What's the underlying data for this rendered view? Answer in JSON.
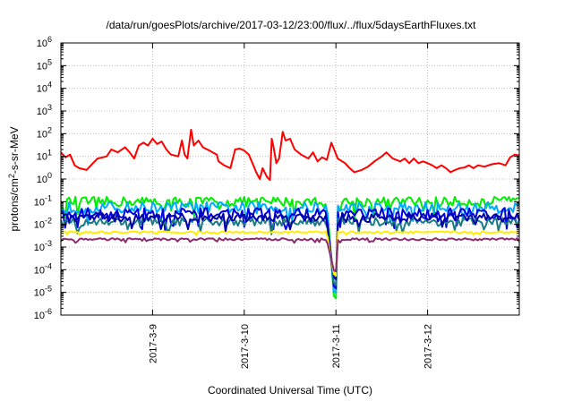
{
  "chart_data": {
    "type": "line",
    "title": "/data/run/goesPlots/archive/2017-03-12/23:00/flux/../flux/5daysEarthFluxes.txt",
    "xlabel": "Coordinated Universal Time (UTC)",
    "ylabel_parts": [
      "protons/cm",
      "2",
      "-s-sr-MeV"
    ],
    "y_scale": "log",
    "ylim": [
      1e-06,
      1000000.0
    ],
    "y_ticks": [
      {
        "base": "10",
        "exp": "-6",
        "value": 1e-06
      },
      {
        "base": "10",
        "exp": "-5",
        "value": 1e-05
      },
      {
        "base": "10",
        "exp": "-4",
        "value": 0.0001
      },
      {
        "base": "10",
        "exp": "-3",
        "value": 0.001
      },
      {
        "base": "10",
        "exp": "-2",
        "value": 0.01
      },
      {
        "base": "10",
        "exp": "-1",
        "value": 0.1
      },
      {
        "base": "10",
        "exp": "0",
        "value": 1
      },
      {
        "base": "10",
        "exp": "1",
        "value": 10
      },
      {
        "base": "10",
        "exp": "2",
        "value": 100
      },
      {
        "base": "10",
        "exp": "3",
        "value": 1000
      },
      {
        "base": "10",
        "exp": "4",
        "value": 10000
      },
      {
        "base": "10",
        "exp": "5",
        "value": 100000
      },
      {
        "base": "10",
        "exp": "6",
        "value": 1000000
      }
    ],
    "x_range_days": [
      8.0,
      13.0
    ],
    "x_ticks": [
      {
        "label": "2017-3-9",
        "day": 9
      },
      {
        "label": "2017-3-10",
        "day": 10
      },
      {
        "label": "2017-3-11",
        "day": 11
      },
      {
        "label": "2017-3-12",
        "day": 12
      }
    ],
    "grid": true,
    "dropout": {
      "start": 10.9,
      "end": 11.02,
      "min_day": 10.99
    },
    "series": [
      {
        "color": "#ff0000",
        "points": [
          [
            8.0,
            15
          ],
          [
            8.05,
            9
          ],
          [
            8.1,
            12
          ],
          [
            8.15,
            4
          ],
          [
            8.2,
            3
          ],
          [
            8.28,
            2.5
          ],
          [
            8.35,
            5
          ],
          [
            8.4,
            8
          ],
          [
            8.5,
            10
          ],
          [
            8.55,
            20
          ],
          [
            8.62,
            15
          ],
          [
            8.7,
            25
          ],
          [
            8.75,
            15
          ],
          [
            8.8,
            8
          ],
          [
            8.85,
            30
          ],
          [
            8.9,
            40
          ],
          [
            8.95,
            30
          ],
          [
            9.0,
            60
          ],
          [
            9.05,
            35
          ],
          [
            9.1,
            45
          ],
          [
            9.15,
            20
          ],
          [
            9.2,
            12
          ],
          [
            9.28,
            10
          ],
          [
            9.32,
            50
          ],
          [
            9.35,
            12
          ],
          [
            9.38,
            8
          ],
          [
            9.42,
            150
          ],
          [
            9.45,
            30
          ],
          [
            9.5,
            50
          ],
          [
            9.55,
            25
          ],
          [
            9.62,
            18
          ],
          [
            9.7,
            12
          ],
          [
            9.72,
            6
          ],
          [
            9.78,
            4
          ],
          [
            9.85,
            3
          ],
          [
            9.9,
            20
          ],
          [
            9.95,
            22
          ],
          [
            10.0,
            18
          ],
          [
            10.05,
            12
          ],
          [
            10.1,
            4
          ],
          [
            10.13,
            2
          ],
          [
            10.17,
            1
          ],
          [
            10.2,
            3
          ],
          [
            10.25,
            1.2
          ],
          [
            10.28,
            0.9
          ],
          [
            10.3,
            60
          ],
          [
            10.32,
            25
          ],
          [
            10.35,
            5
          ],
          [
            10.38,
            8
          ],
          [
            10.42,
            120
          ],
          [
            10.45,
            50
          ],
          [
            10.5,
            60
          ],
          [
            10.55,
            20
          ],
          [
            10.62,
            12
          ],
          [
            10.7,
            8
          ],
          [
            10.75,
            15
          ],
          [
            10.8,
            6
          ],
          [
            10.85,
            9
          ],
          [
            10.9,
            7
          ],
          [
            10.95,
            40
          ],
          [
            10.98,
            20
          ],
          [
            11.02,
            8
          ],
          [
            11.1,
            5
          ],
          [
            11.15,
            3
          ],
          [
            11.2,
            2
          ],
          [
            11.28,
            2.5
          ],
          [
            11.35,
            3.5
          ],
          [
            11.42,
            6
          ],
          [
            11.5,
            10
          ],
          [
            11.55,
            15
          ],
          [
            11.62,
            8
          ],
          [
            11.7,
            6
          ],
          [
            11.75,
            8
          ],
          [
            11.8,
            5
          ],
          [
            11.85,
            8
          ],
          [
            11.9,
            5
          ],
          [
            11.95,
            6
          ],
          [
            12.0,
            5
          ],
          [
            12.05,
            4
          ],
          [
            12.1,
            3
          ],
          [
            12.15,
            4
          ],
          [
            12.2,
            3
          ],
          [
            12.25,
            2
          ],
          [
            12.3,
            2.5
          ],
          [
            12.35,
            3
          ],
          [
            12.4,
            3.2
          ],
          [
            12.45,
            4
          ],
          [
            12.5,
            3
          ],
          [
            12.55,
            4
          ],
          [
            12.62,
            3.5
          ],
          [
            12.7,
            4.5
          ],
          [
            12.78,
            5
          ],
          [
            12.85,
            4
          ],
          [
            12.9,
            9
          ],
          [
            12.95,
            12
          ],
          [
            13.0,
            11
          ]
        ]
      },
      {
        "color": "#00ee00",
        "base": 0.1,
        "spread": 0.22
      },
      {
        "color": "#00aaff",
        "base": 0.055,
        "spread": 0.25
      },
      {
        "color": "#0000dd",
        "base": 0.03,
        "spread": 0.25
      },
      {
        "color": "#1b7b85",
        "base": 0.013,
        "spread": 0.18
      },
      {
        "color": "#0000aa",
        "base": 0.02,
        "spread": 0.2
      },
      {
        "color": "#ffee00",
        "base": 0.0045,
        "spread": 0.04
      },
      {
        "color": "#8b2c6b",
        "base": 0.0022,
        "spread": 0.05
      }
    ]
  }
}
